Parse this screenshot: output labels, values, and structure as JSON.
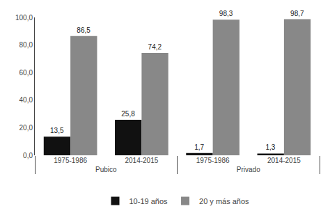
{
  "chart_data": {
    "type": "bar",
    "categories": [
      "1975-1986",
      "2014-2015",
      "1975-1986",
      "2014-2015"
    ],
    "annotations": [
      "Pubico",
      "Privado"
    ],
    "series": [
      {
        "name": "10-19 años",
        "color": "#111111",
        "values": [
          13.5,
          25.8,
          1.7,
          1.3
        ],
        "value_labels": [
          "13,5",
          "25,8",
          "1,7",
          "1,3"
        ]
      },
      {
        "name": "20 y más años",
        "color": "#888888",
        "values": [
          86.5,
          74.2,
          98.3,
          98.7
        ],
        "value_labels": [
          "86,5",
          "74,2",
          "98,3",
          "98,7"
        ]
      }
    ],
    "ylim": [
      0,
      100
    ],
    "yticks": [
      {
        "value": 0.0,
        "label": "0,0"
      },
      {
        "value": 20.0,
        "label": "20,0"
      },
      {
        "value": 40.0,
        "label": "40,0"
      },
      {
        "value": 60.0,
        "label": "60,0"
      },
      {
        "value": 80.0,
        "label": "80,0"
      },
      {
        "value": 100.0,
        "label": "100,0"
      }
    ],
    "data_labels": true,
    "legend": "bottom",
    "grid": false
  }
}
